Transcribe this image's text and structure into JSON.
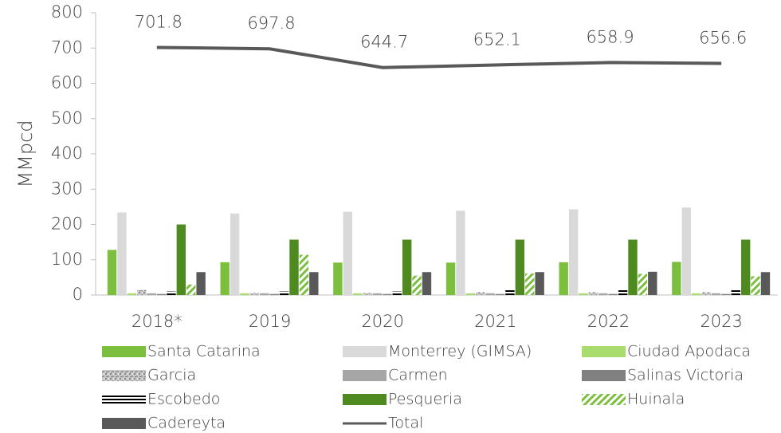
{
  "chart_data": {
    "type": "bar",
    "y_label": "MMpcd",
    "categories": [
      "2018*",
      "2019",
      "2020",
      "2021",
      "2022",
      "2023"
    ],
    "ylim": [
      0,
      800
    ],
    "yticks": [
      0,
      100,
      200,
      300,
      400,
      500,
      600,
      700,
      800
    ],
    "series": [
      {
        "name": "Santa Catarina",
        "color": "#7cbf3e",
        "values": [
          128,
          93,
          92,
          92,
          93,
          94
        ]
      },
      {
        "name": "Monterrey (GIMSA)",
        "color": "#d9d9d9",
        "values": [
          234,
          231,
          236,
          239,
          243,
          248
        ]
      },
      {
        "name": "Ciudad Apodaca",
        "color": "#a9dc6c",
        "values": [
          5,
          5,
          5,
          5,
          5,
          5
        ]
      },
      {
        "name": "Garcia",
        "color": "#a0a0a0",
        "pattern": "noise",
        "values": [
          14,
          6,
          6,
          8,
          8,
          8
        ]
      },
      {
        "name": "Carmen",
        "color": "#a6a6a6",
        "values": [
          5,
          5,
          5,
          5,
          5,
          5
        ]
      },
      {
        "name": "Salinas Victoria",
        "color": "#808080",
        "values": [
          3,
          3,
          3,
          3,
          3,
          3
        ]
      },
      {
        "name": "Escobedo",
        "color": "#000000",
        "pattern": "horizontal",
        "values": [
          10,
          10,
          10,
          14,
          16,
          17
        ]
      },
      {
        "name": "Pesqueria",
        "color": "#4e8a1f",
        "values": [
          200,
          157,
          157,
          157,
          157,
          157
        ]
      },
      {
        "name": "Huinala",
        "color": "#7cbf3e",
        "pattern": "diagonal",
        "values": [
          30,
          114,
          55,
          61,
          60,
          53
        ]
      },
      {
        "name": "Cadereyta",
        "color": "#595959",
        "values": [
          65,
          65,
          65,
          65,
          66,
          65
        ]
      },
      {
        "name": "Total",
        "type": "line",
        "color": "#595959",
        "values": [
          701.8,
          697.8,
          644.7,
          652.1,
          658.9,
          656.6
        ]
      }
    ]
  }
}
